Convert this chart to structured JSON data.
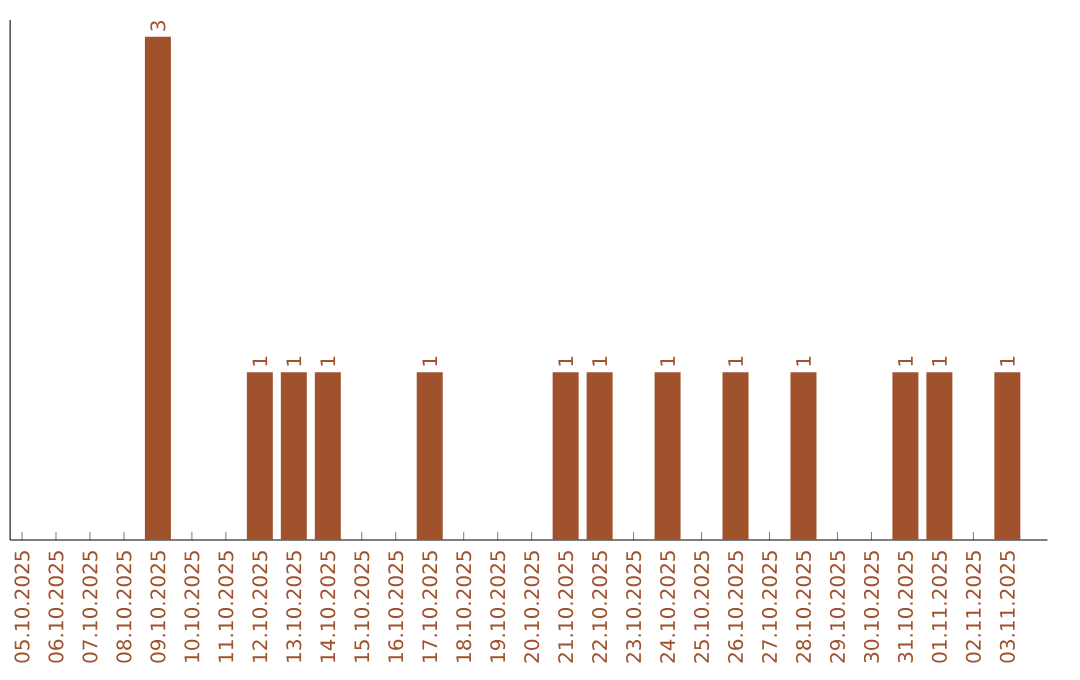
{
  "chart_data": {
    "type": "bar",
    "categories": [
      "05.10.2025",
      "06.10.2025",
      "07.10.2025",
      "08.10.2025",
      "09.10.2025",
      "10.10.2025",
      "11.10.2025",
      "12.10.2025",
      "13.10.2025",
      "14.10.2025",
      "15.10.2025",
      "16.10.2025",
      "17.10.2025",
      "18.10.2025",
      "19.10.2025",
      "20.10.2025",
      "21.10.2025",
      "22.10.2025",
      "23.10.2025",
      "24.10.2025",
      "25.10.2025",
      "26.10.2025",
      "27.10.2025",
      "28.10.2025",
      "29.10.2025",
      "30.10.2025",
      "31.10.2025",
      "01.11.2025",
      "02.11.2025",
      "03.11.2025"
    ],
    "values": [
      0,
      0,
      0,
      0,
      3,
      0,
      0,
      1,
      1,
      1,
      0,
      0,
      1,
      0,
      0,
      0,
      1,
      1,
      0,
      1,
      0,
      1,
      0,
      1,
      0,
      0,
      1,
      1,
      0,
      1
    ],
    "color": "#a0522d",
    "ylim": [
      0,
      3.1
    ],
    "tick_labels": "x",
    "value_labels": [
      null,
      null,
      null,
      null,
      "3",
      null,
      null,
      "1",
      "1",
      "1",
      null,
      null,
      "1",
      null,
      null,
      null,
      "1",
      "1",
      null,
      "1",
      null,
      "1",
      null,
      "1",
      null,
      null,
      "1",
      "1",
      null,
      "1"
    ]
  }
}
